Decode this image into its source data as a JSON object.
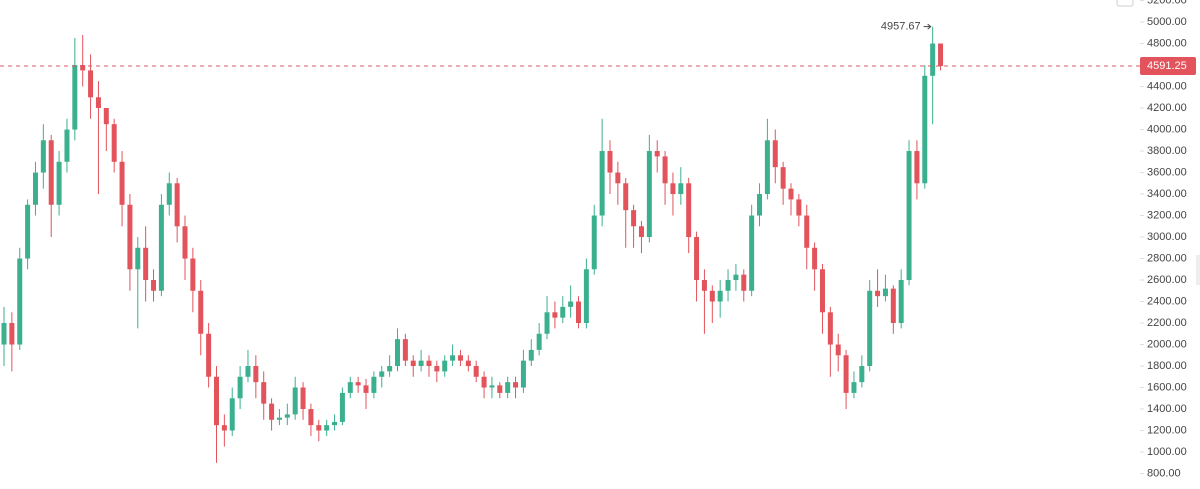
{
  "chart_data": {
    "type": "candlestick",
    "up_color": "#3bb08f",
    "down_color": "#e2535b",
    "ylim": [
      656,
      5205
    ],
    "yticks": [
      {
        "value": 800,
        "label": "800.00"
      },
      {
        "value": 1000,
        "label": "1000.00"
      },
      {
        "value": 1200,
        "label": "1200.00"
      },
      {
        "value": 1400,
        "label": "1400.00"
      },
      {
        "value": 1600,
        "label": "1600.00"
      },
      {
        "value": 1800,
        "label": "1800.00"
      },
      {
        "value": 2000,
        "label": "2000.00"
      },
      {
        "value": 2200,
        "label": "2200.00"
      },
      {
        "value": 2400,
        "label": "2400.00"
      },
      {
        "value": 2600,
        "label": "2600.00"
      },
      {
        "value": 2800,
        "label": "2800.00"
      },
      {
        "value": 3000,
        "label": "3000.00"
      },
      {
        "value": 3200,
        "label": "3200.00"
      },
      {
        "value": 3400,
        "label": "3400.00"
      },
      {
        "value": 3600,
        "label": "3600.00"
      },
      {
        "value": 3800,
        "label": "3800.00"
      },
      {
        "value": 4000,
        "label": "4000.00"
      },
      {
        "value": 4200,
        "label": "4200.00"
      },
      {
        "value": 4400,
        "label": "4400.00"
      },
      {
        "value": 4600,
        "label": "4600.00"
      },
      {
        "value": 4800,
        "label": "4800.00"
      },
      {
        "value": 5000,
        "label": "5000.00"
      },
      {
        "value": 5200,
        "label": "5200.00"
      }
    ],
    "open": [
      2000,
      2200,
      2000,
      2800,
      3300,
      3600,
      3900,
      3300,
      3700,
      4000,
      4600,
      4550,
      4300,
      4200,
      4050,
      3700,
      3300,
      2700,
      2900,
      2600,
      2500,
      3300,
      3500,
      3100,
      2800,
      2500,
      2100,
      1700,
      1250,
      1200,
      1500,
      1700,
      1800,
      1650,
      1450,
      1300,
      1320,
      1350,
      1600,
      1400,
      1250,
      1200,
      1250,
      1280,
      1550,
      1650,
      1620,
      1550,
      1700,
      1750,
      1800,
      2050,
      1850,
      1800,
      1850,
      1800,
      1750,
      1850,
      1900,
      1850,
      1800,
      1700,
      1600,
      1620,
      1550,
      1650,
      1600,
      1850,
      1950,
      2100,
      2300,
      2250,
      2350,
      2400,
      2200,
      2700,
      3200,
      3800,
      3600,
      3500,
      3250,
      3100,
      3000,
      3800,
      3750,
      3500,
      3400,
      3500,
      3000,
      2600,
      2500,
      2400,
      2500,
      2600,
      2650,
      2500,
      3200,
      3400,
      3900,
      3650,
      3450,
      3350,
      3200,
      2900,
      2700,
      2300,
      2000,
      1900,
      1550,
      1650,
      1800,
      2500,
      2450,
      2520,
      2200,
      2600,
      3800,
      3500,
      4500,
      4800
    ],
    "high": [
      2350,
      2300,
      2900,
      3350,
      3700,
      4050,
      3950,
      3800,
      4100,
      4850,
      4880,
      4700,
      4450,
      4200,
      4100,
      3800,
      3400,
      3000,
      3100,
      2700,
      3400,
      3600,
      3550,
      3200,
      2900,
      2600,
      2200,
      1800,
      1350,
      1600,
      1800,
      1950,
      1900,
      1750,
      1500,
      1400,
      1450,
      1700,
      1650,
      1450,
      1300,
      1300,
      1350,
      1600,
      1700,
      1700,
      1680,
      1750,
      1800,
      1900,
      2150,
      2100,
      1900,
      1950,
      1900,
      1850,
      1900,
      2000,
      1950,
      1900,
      1850,
      1750,
      1700,
      1650,
      1700,
      1700,
      1950,
      2050,
      2200,
      2450,
      2400,
      2450,
      2550,
      2450,
      2800,
      3300,
      4100,
      3900,
      3700,
      3550,
      3300,
      3150,
      3950,
      3900,
      3800,
      3600,
      3650,
      3550,
      3050,
      2700,
      2550,
      2600,
      2700,
      2750,
      2700,
      3300,
      3500,
      4100,
      4000,
      3700,
      3500,
      3400,
      3300,
      2950,
      2750,
      2350,
      2100,
      1950,
      1750,
      1900,
      2600,
      2700,
      2650,
      2550,
      2700,
      3900,
      3900,
      4600,
      4957.67,
      4800
    ],
    "low": [
      1800,
      1750,
      1950,
      2700,
      3200,
      3450,
      3000,
      3200,
      3600,
      3900,
      4400,
      4100,
      3400,
      3800,
      3600,
      3100,
      2500,
      2150,
      2400,
      2400,
      2450,
      3200,
      2950,
      2600,
      2300,
      1900,
      1600,
      900,
      1050,
      1150,
      1400,
      1650,
      1500,
      1300,
      1200,
      1250,
      1250,
      1300,
      1300,
      1150,
      1100,
      1150,
      1200,
      1250,
      1500,
      1550,
      1400,
      1500,
      1600,
      1700,
      1750,
      1800,
      1700,
      1750,
      1700,
      1650,
      1700,
      1800,
      1800,
      1750,
      1650,
      1500,
      1500,
      1500,
      1500,
      1500,
      1550,
      1800,
      1900,
      2050,
      2150,
      2200,
      2250,
      2150,
      2150,
      2650,
      3100,
      3400,
      3300,
      2900,
      2900,
      2850,
      2950,
      3600,
      3300,
      3200,
      3300,
      2850,
      2400,
      2100,
      2200,
      2250,
      2400,
      2500,
      2400,
      2450,
      3100,
      3350,
      3500,
      3300,
      3200,
      3100,
      2700,
      2500,
      2100,
      1700,
      1750,
      1400,
      1500,
      1600,
      1750,
      2350,
      2400,
      2100,
      2150,
      2550,
      3350,
      3450,
      4050,
      4550
    ],
    "close": [
      2200,
      2000,
      2800,
      3300,
      3600,
      3900,
      3300,
      3700,
      4000,
      4600,
      4550,
      4300,
      4200,
      4050,
      3700,
      3300,
      2700,
      2900,
      2600,
      2500,
      3300,
      3500,
      3100,
      2800,
      2500,
      2100,
      1700,
      1250,
      1200,
      1500,
      1700,
      1800,
      1650,
      1450,
      1300,
      1320,
      1350,
      1600,
      1400,
      1250,
      1200,
      1250,
      1280,
      1550,
      1650,
      1620,
      1550,
      1700,
      1750,
      1800,
      2050,
      1850,
      1800,
      1850,
      1800,
      1750,
      1850,
      1900,
      1850,
      1800,
      1700,
      1600,
      1620,
      1550,
      1650,
      1600,
      1850,
      1950,
      2100,
      2300,
      2250,
      2350,
      2400,
      2200,
      2700,
      3200,
      3800,
      3600,
      3500,
      3250,
      3100,
      3000,
      3800,
      3750,
      3500,
      3400,
      3500,
      3000,
      2600,
      2500,
      2400,
      2500,
      2600,
      2650,
      2500,
      3200,
      3400,
      3900,
      3650,
      3450,
      3350,
      3200,
      2900,
      2700,
      2300,
      2000,
      1900,
      1550,
      1650,
      1800,
      2500,
      2450,
      2520,
      2200,
      2600,
      3800,
      3500,
      4500,
      4800,
      4591.25
    ]
  }
}
